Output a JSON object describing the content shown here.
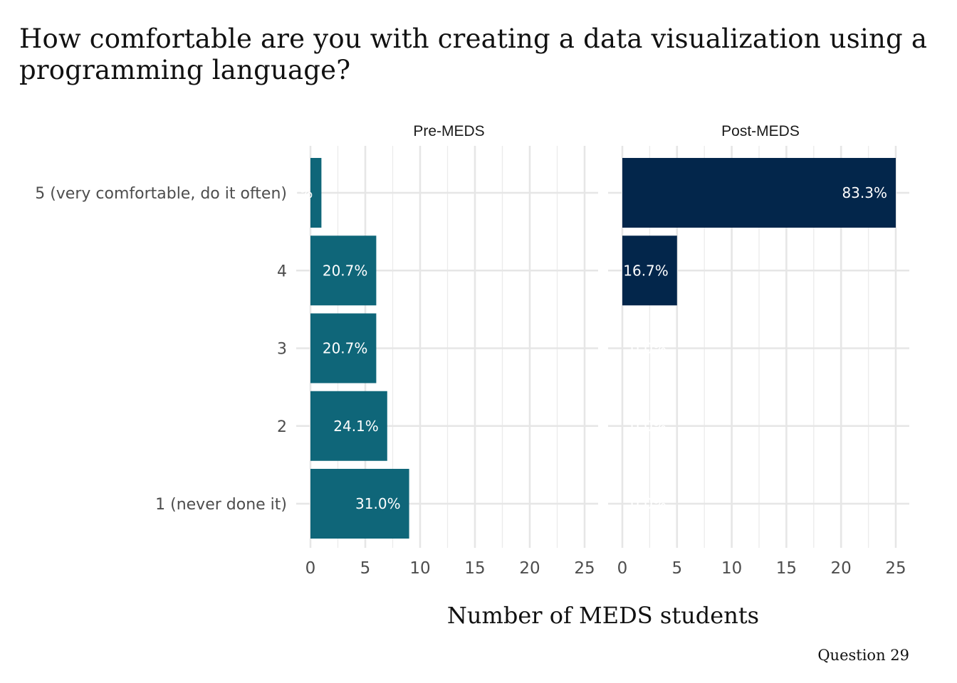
{
  "chart_data": {
    "type": "bar",
    "orientation": "horizontal",
    "title": "How comfortable are you with creating a data visualization using a\nprogramming language?",
    "xlabel": "Number of MEDS students",
    "ylabel": "",
    "caption": "Question 29",
    "xlim": [
      0,
      25
    ],
    "x_ticks": [
      0,
      5,
      10,
      15,
      20,
      25
    ],
    "grid": true,
    "legend": "none",
    "categories": [
      "5 (very comfortable, do it often)",
      "4",
      "3",
      "2",
      "1 (never done it)"
    ],
    "panels": [
      {
        "name": "Pre-MEDS",
        "color": "#0f6679",
        "values": [
          1,
          6,
          6,
          7,
          9
        ],
        "labels": [
          "3.4%",
          "20.7%",
          "20.7%",
          "24.1%",
          "31.0%"
        ]
      },
      {
        "name": "Post-MEDS",
        "color": "#03264b",
        "values": [
          25,
          5,
          0,
          0,
          0
        ],
        "labels": [
          "83.3%",
          "16.7%",
          "0.0%",
          "0.0%",
          "0.0%"
        ]
      }
    ]
  }
}
